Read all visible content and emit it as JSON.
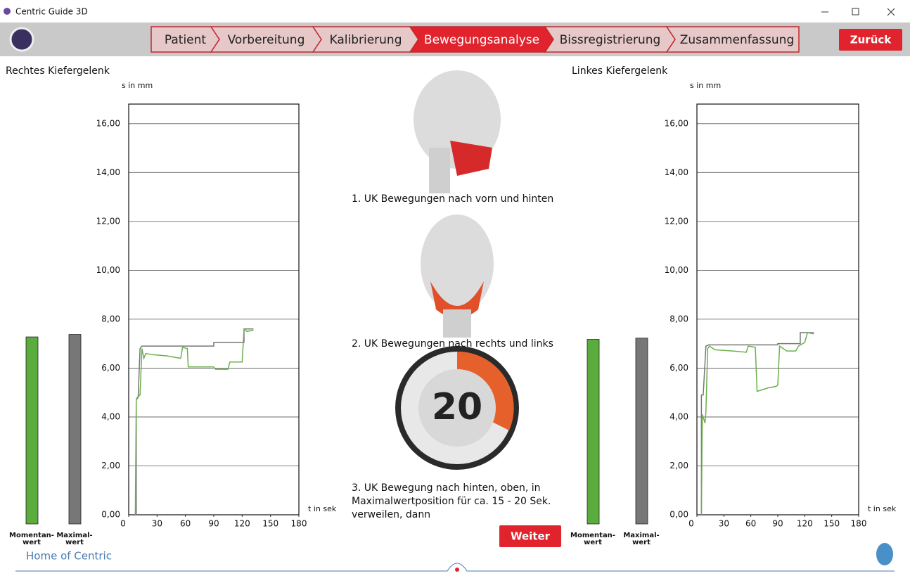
{
  "window": {
    "title": "Centric Guide 3D"
  },
  "nav": {
    "steps": [
      "Patient",
      "Vorbereitung",
      "Kalibrierung",
      "Bewegungsanalyse",
      "Bissregistrierung",
      "Zusammenfassung"
    ],
    "active": 3,
    "back": "Zurück"
  },
  "charts": [
    {
      "type": "line",
      "title": "Rechtes Kiefergelenk",
      "ylabel": "s in mm",
      "xlabel": "t in sek",
      "xlim": [
        0,
        180
      ],
      "xticks": [
        0,
        30,
        60,
        90,
        120,
        150,
        180
      ],
      "ylim": [
        0,
        16.8
      ],
      "yticks": [
        {
          "value": 0,
          "label": "0,00"
        },
        {
          "value": 2,
          "label": "2,00"
        },
        {
          "value": 4,
          "label": "4,00"
        },
        {
          "value": 6,
          "label": "6,00"
        },
        {
          "value": 8,
          "label": "8,00"
        },
        {
          "value": 10,
          "label": "10,00"
        },
        {
          "value": 12,
          "label": "12,00"
        },
        {
          "value": 14,
          "label": "14,00"
        },
        {
          "value": 16,
          "label": "16,00"
        }
      ],
      "grid": true,
      "series": [
        {
          "color": "#777777",
          "x": [
            8,
            8,
            10,
            12,
            14,
            90,
            90,
            122,
            122,
            132
          ],
          "values": [
            0,
            4.7,
            4.8,
            6.8,
            6.9,
            6.9,
            7.05,
            7.05,
            7.6,
            7.6
          ]
        },
        {
          "color": "#6ab04c",
          "x": [
            7,
            8,
            9,
            12,
            14,
            16,
            18,
            25,
            40,
            55,
            57,
            62,
            63,
            73,
            75,
            90,
            91,
            92,
            105,
            107,
            120,
            122,
            125,
            132
          ],
          "values": [
            0,
            4.7,
            4.8,
            4.9,
            6.8,
            6.4,
            6.6,
            6.55,
            6.5,
            6.4,
            6.85,
            6.8,
            6.05,
            6.05,
            6.05,
            6.05,
            6.0,
            5.95,
            5.95,
            6.25,
            6.25,
            7.6,
            7.5,
            7.55
          ]
        }
      ],
      "bars": {
        "labels": [
          [
            "Momentan-",
            "wert"
          ],
          [
            "Maximal-",
            "wert"
          ]
        ],
        "values": [
          7.65,
          7.75
        ],
        "colors": [
          "#5aac3c",
          "#777777"
        ]
      }
    },
    {
      "type": "line",
      "title": "Linkes Kiefergelenk",
      "ylabel": "s in mm",
      "xlabel": "t in sek",
      "xlim": [
        0,
        180
      ],
      "xticks": [
        0,
        30,
        60,
        90,
        120,
        150,
        180
      ],
      "ylim": [
        0,
        16.8
      ],
      "yticks": [
        {
          "value": 0,
          "label": "0,00"
        },
        {
          "value": 2,
          "label": "2,00"
        },
        {
          "value": 4,
          "label": "4,00"
        },
        {
          "value": 6,
          "label": "6,00"
        },
        {
          "value": 8,
          "label": "8,00"
        },
        {
          "value": 10,
          "label": "10,00"
        },
        {
          "value": 12,
          "label": "12,00"
        },
        {
          "value": 14,
          "label": "14,00"
        },
        {
          "value": 16,
          "label": "16,00"
        }
      ],
      "grid": true,
      "series": [
        {
          "color": "#777777",
          "x": [
            5,
            5,
            7,
            10,
            13,
            60,
            60,
            90,
            90,
            115,
            115,
            130
          ],
          "values": [
            0,
            4.9,
            4.9,
            6.9,
            6.95,
            6.95,
            6.95,
            6.95,
            7.0,
            7.0,
            7.45,
            7.45
          ]
        },
        {
          "color": "#6ab04c",
          "x": [
            5,
            6,
            7,
            9,
            10,
            12,
            14,
            20,
            40,
            55,
            57,
            65,
            67,
            80,
            88,
            90,
            92,
            100,
            110,
            113,
            120,
            123,
            130
          ],
          "values": [
            0,
            4.1,
            4.0,
            3.75,
            4.2,
            6.8,
            6.9,
            6.75,
            6.7,
            6.65,
            6.9,
            6.85,
            5.05,
            5.2,
            5.25,
            5.3,
            6.9,
            6.7,
            6.7,
            6.9,
            7.05,
            7.45,
            7.4
          ]
        }
      ],
      "bars": {
        "labels": [
          [
            "Momentan-",
            "wert"
          ],
          [
            "Maximal-",
            "wert"
          ]
        ],
        "values": [
          7.55,
          7.6
        ],
        "colors": [
          "#5aac3c",
          "#777777"
        ]
      }
    }
  ],
  "center": {
    "steps": [
      [
        "1. UK Bewegungen nach vorn und hinten"
      ],
      [
        "2. UK Bewegungen nach rechts und links"
      ],
      [
        "3. UK Bewegung nach hinten, oben, in",
        "Maximalwertposition für ca. 15 - 20 Sek.",
        "verweilen, dann"
      ]
    ],
    "timer": "20",
    "next": "Weiter"
  },
  "footer": {
    "brand": "Home of Centric"
  }
}
